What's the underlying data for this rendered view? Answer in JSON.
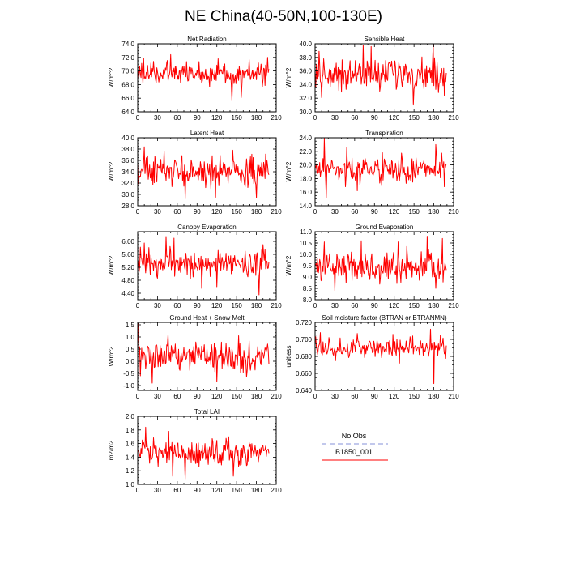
{
  "page": {
    "title": "NE China(40-50N,100-130E)"
  },
  "legend": {
    "title": "No Obs",
    "entries": [
      {
        "name": "No Obs",
        "color": "#9ea6e0",
        "style": "dashed"
      },
      {
        "name": "B1850_001",
        "color": "#ff0000",
        "style": "solid"
      }
    ]
  },
  "line_color": "#ff0000",
  "chart_data": [
    {
      "type": "line",
      "title": "Net Radiation",
      "xlabel": "",
      "ylabel": "W/m^2",
      "xlim": [
        0,
        210
      ],
      "ylim": [
        64,
        74
      ],
      "xticks": [
        "0",
        "30",
        "60",
        "90",
        "120",
        "150",
        "180",
        "210"
      ],
      "yticks": [
        "64.0",
        "66.0",
        "68.0",
        "70.0",
        "72.0",
        "74.0"
      ],
      "series": [
        {
          "name": "B1850_001",
          "mean": 69.6,
          "amp": 0.9,
          "spikes": [
            [
              9,
              71.9
            ],
            [
              24,
              71.4
            ],
            [
              50,
              72.4
            ],
            [
              122,
              71.8
            ],
            [
              143,
              65.6
            ],
            [
              157,
              66.1
            ],
            [
              197,
              72.0
            ]
          ],
          "values": []
        }
      ]
    },
    {
      "type": "line",
      "title": "Sensible Heat",
      "xlabel": "",
      "ylabel": "W/m^2",
      "xlim": [
        0,
        210
      ],
      "ylim": [
        30,
        40
      ],
      "xticks": [
        "0",
        "30",
        "60",
        "90",
        "120",
        "150",
        "180",
        "210"
      ],
      "yticks": [
        "30.0",
        "32.0",
        "34.0",
        "36.0",
        "38.0",
        "40.0"
      ],
      "series": [
        {
          "name": "B1850_001",
          "mean": 35.5,
          "amp": 1.2,
          "spikes": [
            [
              6,
              38.9
            ],
            [
              10,
              32.1
            ],
            [
              73,
              39.8
            ],
            [
              85,
              39.6
            ],
            [
              149,
              31.0
            ],
            [
              179,
              39.9
            ],
            [
              196,
              32.4
            ]
          ],
          "values": []
        }
      ]
    },
    {
      "type": "line",
      "title": "Latent Heat",
      "xlabel": "",
      "ylabel": "W/m^2",
      "xlim": [
        0,
        210
      ],
      "ylim": [
        28,
        40
      ],
      "xticks": [
        "0",
        "30",
        "60",
        "90",
        "120",
        "150",
        "180",
        "210"
      ],
      "yticks": [
        "28.0",
        "30.0",
        "32.0",
        "34.0",
        "36.0",
        "38.0",
        "40.0"
      ],
      "series": [
        {
          "name": "B1850_001",
          "mean": 34.0,
          "amp": 1.4,
          "spikes": [
            [
              10,
              38.4
            ],
            [
              40,
              37.7
            ],
            [
              72,
              29.2
            ],
            [
              118,
              29.5
            ],
            [
              144,
              37.8
            ],
            [
              180,
              29.4
            ],
            [
              194,
              37.1
            ]
          ],
          "values": []
        }
      ]
    },
    {
      "type": "line",
      "title": "Transpiration",
      "xlabel": "",
      "ylabel": "W/m^2",
      "xlim": [
        0,
        210
      ],
      "ylim": [
        14,
        24
      ],
      "xticks": [
        "0",
        "30",
        "60",
        "90",
        "120",
        "150",
        "180",
        "210"
      ],
      "yticks": [
        "14.0",
        "16.0",
        "18.0",
        "20.0",
        "22.0",
        "24.0"
      ],
      "series": [
        {
          "name": "B1850_001",
          "mean": 19.3,
          "amp": 1.0,
          "spikes": [
            [
              14,
              23.9
            ],
            [
              17,
              15.2
            ],
            [
              48,
              22.6
            ],
            [
              64,
              16.2
            ],
            [
              102,
              21.8
            ],
            [
              183,
              23.0
            ],
            [
              196,
              16.8
            ]
          ],
          "values": []
        }
      ]
    },
    {
      "type": "line",
      "title": "Canopy Evaporation",
      "xlabel": "",
      "ylabel": "W/m^2",
      "xlim": [
        0,
        210
      ],
      "ylim": [
        4.2,
        6.3
      ],
      "xticks": [
        "0",
        "30",
        "60",
        "90",
        "120",
        "150",
        "180",
        "210"
      ],
      "yticks": [
        "4.40",
        "4.80",
        "5.20",
        "5.60",
        "6.00"
      ],
      "series": [
        {
          "name": "B1850_001",
          "mean": 5.3,
          "amp": 0.22,
          "spikes": [
            [
              10,
              5.95
            ],
            [
              43,
              6.15
            ],
            [
              55,
              6.1
            ],
            [
              97,
              4.55
            ],
            [
              120,
              4.6
            ],
            [
              184,
              4.35
            ],
            [
              190,
              5.9
            ]
          ],
          "values": []
        }
      ]
    },
    {
      "type": "line",
      "title": "Ground Evaporation",
      "xlabel": "",
      "ylabel": "W/m^2",
      "xlim": [
        0,
        210
      ],
      "ylim": [
        8.0,
        11.0
      ],
      "xticks": [
        "0",
        "30",
        "60",
        "90",
        "120",
        "150",
        "180",
        "210"
      ],
      "yticks": [
        "8.0",
        "8.5",
        "9.0",
        "9.5",
        "10.0",
        "10.5",
        "11.0"
      ],
      "series": [
        {
          "name": "B1850_001",
          "mean": 9.4,
          "amp": 0.38,
          "spikes": [
            [
              14,
              10.55
            ],
            [
              30,
              8.4
            ],
            [
              70,
              10.6
            ],
            [
              126,
              10.55
            ],
            [
              170,
              10.8
            ],
            [
              183,
              8.5
            ],
            [
              193,
              10.7
            ]
          ],
          "values": []
        }
      ]
    },
    {
      "type": "line",
      "title": "Ground Heat + Snow Melt",
      "xlabel": "",
      "ylabel": "W/m^2",
      "xlim": [
        0,
        210
      ],
      "ylim": [
        -1.2,
        1.6
      ],
      "xticks": [
        "0",
        "30",
        "60",
        "90",
        "120",
        "150",
        "180",
        "210"
      ],
      "yticks": [
        "-1.0",
        "-0.5",
        "0.0",
        "0.5",
        "1.0",
        "1.5"
      ],
      "series": [
        {
          "name": "B1850_001",
          "mean": 0.15,
          "amp": 0.32,
          "spikes": [
            [
              1,
              1.55
            ],
            [
              4,
              -0.6
            ],
            [
              22,
              -0.9
            ],
            [
              46,
              1.1
            ],
            [
              120,
              -0.85
            ],
            [
              153,
              1.05
            ],
            [
              165,
              -0.65
            ]
          ],
          "values": []
        }
      ]
    },
    {
      "type": "line",
      "title": "Soil moisture factor (BTRAN or BTRANMN)",
      "xlabel": "",
      "ylabel": "unitless",
      "xlim": [
        0,
        210
      ],
      "ylim": [
        0.64,
        0.72
      ],
      "xticks": [
        "0",
        "30",
        "60",
        "90",
        "120",
        "150",
        "180",
        "210"
      ],
      "yticks": [
        "0.640",
        "0.660",
        "0.680",
        "0.700",
        "0.720"
      ],
      "series": [
        {
          "name": "B1850_001",
          "mean": 0.69,
          "amp": 0.006,
          "spikes": [
            [
              8,
              0.708
            ],
            [
              64,
              0.707
            ],
            [
              118,
              0.706
            ],
            [
              128,
              0.672
            ],
            [
              175,
              0.712
            ],
            [
              180,
              0.648
            ],
            [
              190,
              0.705
            ]
          ],
          "values": []
        }
      ]
    },
    {
      "type": "line",
      "title": "Total LAI",
      "xlabel": "",
      "ylabel": "m2/m2",
      "xlim": [
        0,
        210
      ],
      "ylim": [
        1.0,
        2.0
      ],
      "xticks": [
        "0",
        "30",
        "60",
        "90",
        "120",
        "150",
        "180",
        "210"
      ],
      "yticks": [
        "1.0",
        "1.2",
        "1.4",
        "1.6",
        "1.8",
        "2.0"
      ],
      "series": [
        {
          "name": "B1850_001",
          "mean": 1.47,
          "amp": 0.1,
          "spikes": [
            [
              12,
              1.84
            ],
            [
              47,
              1.78
            ],
            [
              53,
              1.12
            ],
            [
              72,
              1.08
            ],
            [
              138,
              1.7
            ],
            [
              145,
              1.12
            ],
            [
              196,
              1.5
            ]
          ],
          "values": []
        }
      ]
    }
  ]
}
